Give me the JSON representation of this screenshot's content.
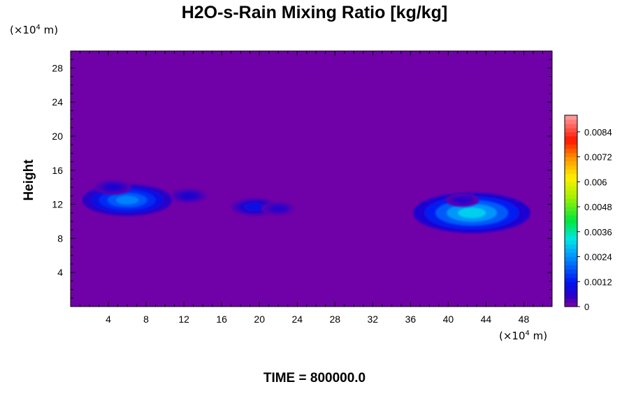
{
  "chart_data": {
    "type": "heatmap",
    "title": "H2O-s-Rain Mixing Ratio [kg/kg]",
    "ylabel": "Height",
    "y_unit": {
      "prefix": "(×10",
      "exp": "4",
      "suffix": " m)"
    },
    "x_unit": {
      "prefix": "(×10",
      "exp": "4",
      "suffix": " m)"
    },
    "xlim": [
      0,
      51
    ],
    "ylim": [
      0,
      30
    ],
    "x_ticks": [
      "4",
      "8",
      "12",
      "16",
      "20",
      "24",
      "28",
      "32",
      "36",
      "40",
      "44",
      "48"
    ],
    "y_ticks": [
      "4",
      "8",
      "12",
      "16",
      "20",
      "24",
      "28"
    ],
    "colorbar": {
      "range": [
        0,
        0.0092
      ],
      "tick_labels": [
        "0",
        "0.0012",
        "0.0024",
        "0.0036",
        "0.0048",
        "0.006",
        "0.0072",
        "0.0084"
      ],
      "background_color": "#7000a8"
    },
    "features": [
      {
        "x": 6.0,
        "y": 12.5,
        "peak": 0.0022
      },
      {
        "x": 4.5,
        "y": 14.0,
        "peak": 0.0006
      },
      {
        "x": 12.5,
        "y": 13.0,
        "peak": 0.0006
      },
      {
        "x": 19.5,
        "y": 11.7,
        "peak": 0.0009
      },
      {
        "x": 22.0,
        "y": 11.5,
        "peak": 0.0005
      },
      {
        "x": 42.5,
        "y": 11.0,
        "peak": 0.003
      },
      {
        "x": 41.5,
        "y": 12.5,
        "peak": 0.0005
      }
    ]
  },
  "footer": {
    "time": "TIME = 800000.0"
  }
}
